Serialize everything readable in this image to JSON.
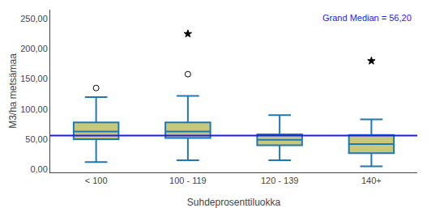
{
  "chart_data": {
    "type": "box",
    "categories": [
      "< 100",
      "100 - 119",
      "120 - 139",
      "140+"
    ],
    "xlabel": "Suhdeprosenttiluokka",
    "ylabel": "M3/ha metsämaa",
    "ylim": [
      -5,
      265
    ],
    "yticks": [
      {
        "value": 0,
        "label": "0,00"
      },
      {
        "value": 50,
        "label": "50,00"
      },
      {
        "value": 100,
        "label": "100,00"
      },
      {
        "value": 150,
        "label": "150,00"
      },
      {
        "value": 200,
        "label": "200,00"
      },
      {
        "value": 250,
        "label": "250,00"
      }
    ],
    "grid": false,
    "series": [
      {
        "type": "box",
        "color": "#c8c87a",
        "q1": [
          50,
          52,
          40,
          27
        ],
        "median": [
          63,
          63,
          49,
          42
        ],
        "q3": [
          78,
          78,
          58,
          57
        ],
        "lower_whisker": [
          12,
          15,
          15,
          5
        ],
        "upper_whisker": [
          120,
          122,
          90,
          83
        ]
      },
      {
        "type": "scatter",
        "marker": "circle",
        "color": "#000000",
        "values": [
          [
            135
          ],
          [
            158
          ],
          [],
          []
        ]
      },
      {
        "type": "scatter",
        "marker": "star",
        "color": "#000000",
        "values": [
          [],
          [
            225
          ],
          [],
          [
            180
          ]
        ]
      }
    ],
    "reference_line": {
      "value": 56.2,
      "label": "Grand Median = 56,20",
      "color": "#1a1aff"
    }
  }
}
